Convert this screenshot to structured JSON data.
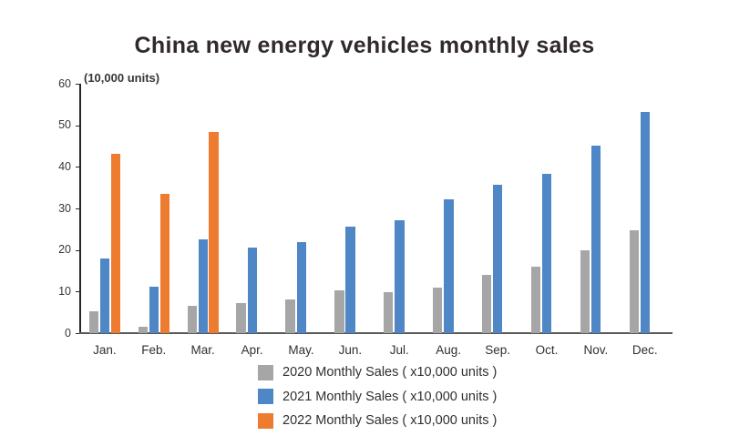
{
  "title": "China new energy vehicles monthly sales",
  "axis_unit_label": "(10,000 units)",
  "chart_data": {
    "type": "bar",
    "title": "China new energy vehicles monthly sales",
    "ylabel": "(10,000 units)",
    "xlabel": "",
    "categories": [
      "Jan.",
      "Feb.",
      "Mar.",
      "Apr.",
      "May.",
      "Jun.",
      "Jul.",
      "Aug.",
      "Sep.",
      "Oct.",
      "Nov.",
      "Dec."
    ],
    "series": [
      {
        "name": "2020 Monthly Sales",
        "legend_label": "2020 Monthly Sales ( x10,000 units )",
        "color": "#a6a6a6",
        "values": [
          5.2,
          1.6,
          6.5,
          7.3,
          8.2,
          10.4,
          9.8,
          10.9,
          14.1,
          16.1,
          20.0,
          24.8
        ]
      },
      {
        "name": "2021 Monthly Sales",
        "legend_label": "2021 Monthly Sales ( x10,000 units )",
        "color": "#4f86c6",
        "values": [
          18.0,
          11.1,
          22.6,
          20.7,
          21.8,
          25.6,
          27.1,
          32.2,
          35.7,
          38.3,
          45.1,
          53.2
        ]
      },
      {
        "name": "2022 Monthly Sales",
        "legend_label": "2022 Monthly Sales ( x10,000 units )",
        "color": "#ed7c31",
        "values": [
          43.2,
          33.5,
          48.5,
          null,
          null,
          null,
          null,
          null,
          null,
          null,
          null,
          null
        ]
      }
    ],
    "ylim": [
      0,
      60
    ],
    "y_ticks": [
      0,
      10,
      20,
      30,
      40,
      50,
      60
    ],
    "grid": false,
    "legend_position": "bottom"
  }
}
